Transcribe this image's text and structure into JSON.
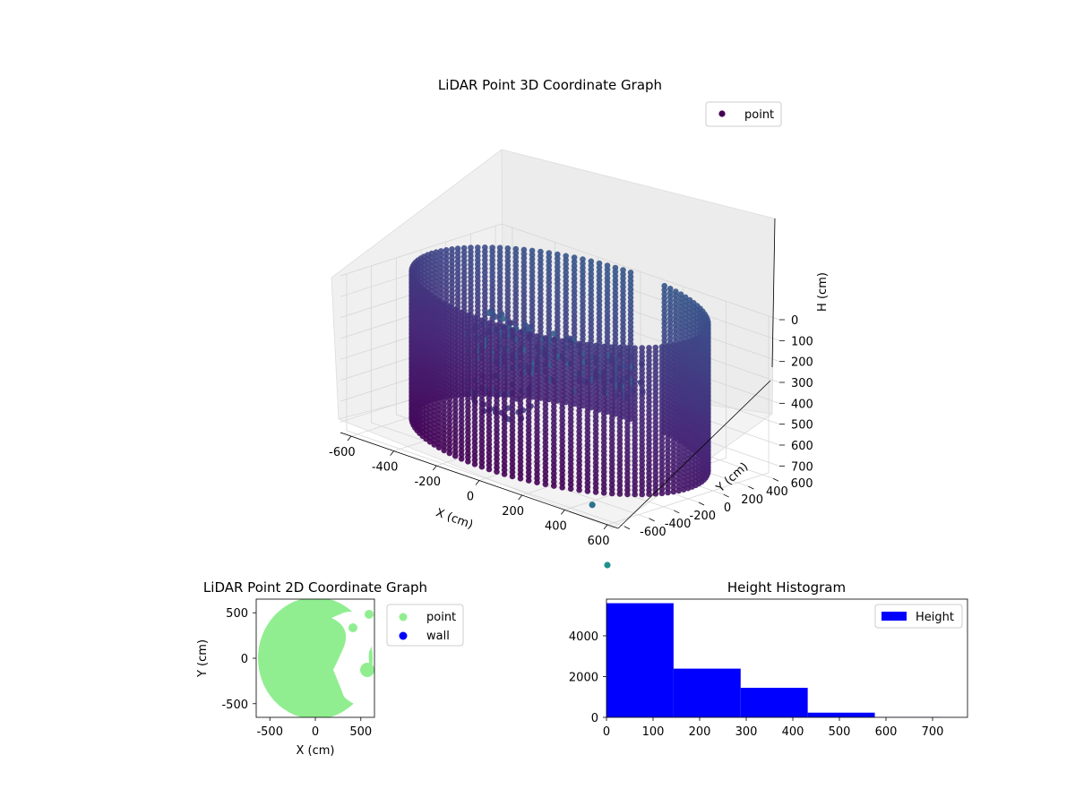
{
  "chart_data": [
    {
      "type": "scatter",
      "title": "LiDAR Point 3D Coordinate Graph",
      "xlabel": "X (cm)",
      "ylabel": "Y (cm)",
      "zlabel": "H (cm)",
      "xticks": [
        -600,
        -400,
        -200,
        0,
        200,
        400,
        600
      ],
      "yticks": [
        -600,
        -400,
        -200,
        0,
        200,
        400,
        600
      ],
      "zticks": [
        0,
        100,
        200,
        300,
        400,
        500,
        600,
        700
      ],
      "xlim": [
        -650,
        650
      ],
      "ylim": [
        -650,
        650
      ],
      "zlim": [
        0,
        750
      ],
      "z_inverted": true,
      "colormap": "viridis",
      "legend": {
        "position": "top-right",
        "entries": [
          {
            "name": "point",
            "color": "#440154"
          }
        ]
      },
      "series": [
        {
          "name": "point",
          "description": "cylindrical wall of points, radius ~600 cm, height 0-700 cm, plus interior clutter"
        }
      ]
    },
    {
      "type": "scatter",
      "title": "LiDAR Point 2D Coordinate Graph",
      "xlabel": "X (cm)",
      "ylabel": "Y (cm)",
      "xticks": [
        -500,
        0,
        500
      ],
      "yticks": [
        -500,
        0,
        500
      ],
      "xlim": [
        -650,
        650
      ],
      "ylim": [
        -650,
        650
      ],
      "legend": {
        "position": "outside-right",
        "entries": [
          {
            "name": "point",
            "color": "#90ee90"
          },
          {
            "name": "wall",
            "color": "#0000ff"
          }
        ]
      }
    },
    {
      "type": "bar",
      "title": "Height Histogram",
      "legend": {
        "position": "top-right",
        "entries": [
          {
            "name": "Height",
            "color": "#0000ff"
          }
        ]
      },
      "xticks": [
        0,
        100,
        200,
        300,
        400,
        500,
        600,
        700
      ],
      "yticks": [
        0,
        2000,
        4000
      ],
      "xlim": [
        0,
        775
      ],
      "ylim": [
        0,
        5800
      ],
      "bins": [
        {
          "x0": 0,
          "x1": 144,
          "value": 5600
        },
        {
          "x0": 144,
          "x1": 288,
          "value": 2390
        },
        {
          "x0": 288,
          "x1": 432,
          "value": 1450
        },
        {
          "x0": 432,
          "x1": 576,
          "value": 230
        },
        {
          "x0": 576,
          "x1": 720,
          "value": 10
        }
      ],
      "color": "#0000ff"
    }
  ]
}
